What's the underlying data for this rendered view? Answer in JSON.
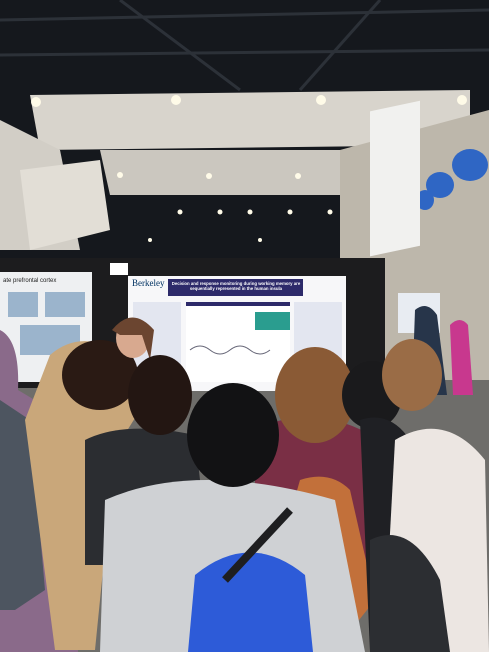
{
  "poster": {
    "institution": "Berkeley",
    "title": "Decision and response monitoring during working memory are sequentially represented in the human insula"
  },
  "left_poster": {
    "title": "ate prefrontal cortex"
  }
}
